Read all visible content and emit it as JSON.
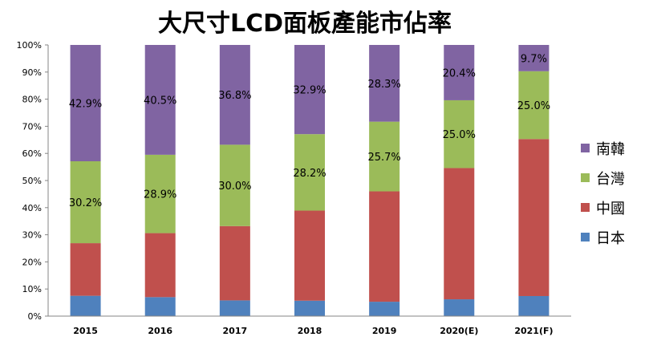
{
  "chart_data": {
    "type": "stacked-bar",
    "title": "大尺寸LCD面板產能市佔率",
    "categories": [
      "2015",
      "2016",
      "2017",
      "2018",
      "2019",
      "2020(E)",
      "2021(F)"
    ],
    "ylim": [
      0,
      100
    ],
    "ytick_labels": [
      "0%",
      "10%",
      "20%",
      "30%",
      "40%",
      "50%",
      "60%",
      "70%",
      "80%",
      "90%",
      "100%"
    ],
    "legend_position": "right",
    "series": [
      {
        "name": "日本",
        "color": "#4f81bd",
        "values": [
          7.5,
          7.0,
          5.8,
          5.7,
          5.3,
          6.2,
          7.4
        ],
        "labels": [
          "",
          "",
          "",
          "",
          "",
          "",
          ""
        ]
      },
      {
        "name": "中國",
        "color": "#c0504d",
        "values": [
          19.4,
          23.6,
          27.4,
          33.2,
          40.7,
          48.4,
          57.9
        ],
        "labels": [
          "",
          "",
          "",
          "",
          "",
          "",
          ""
        ]
      },
      {
        "name": "台灣",
        "color": "#9bbb59",
        "values": [
          30.2,
          28.9,
          30.0,
          28.2,
          25.7,
          25.0,
          25.0
        ],
        "labels": [
          "30.2%",
          "28.9%",
          "30.0%",
          "28.2%",
          "25.7%",
          "25.0%",
          "25.0%"
        ]
      },
      {
        "name": "南韓",
        "color": "#8064a2",
        "values": [
          42.9,
          40.5,
          36.8,
          32.9,
          28.3,
          20.4,
          9.7
        ],
        "labels": [
          "42.9%",
          "40.5%",
          "36.8%",
          "32.9%",
          "28.3%",
          "20.4%",
          "9.7%"
        ]
      }
    ]
  }
}
